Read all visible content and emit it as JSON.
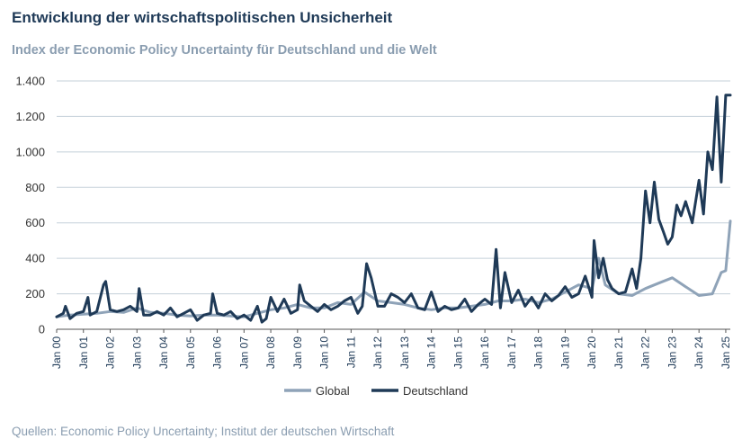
{
  "header": {
    "title": "Entwicklung der wirtschaftspolitischen Unsicherheit",
    "subtitle": "Index der Economic Policy Uncertainty für Deutschland und die Welt"
  },
  "footer": {
    "source": "Quellen: Economic Policy Uncertainty; Institut der deutschen Wirtschaft"
  },
  "chart_data": {
    "type": "line",
    "title": "Entwicklung der wirtschaftspolitischen Unsicherheit",
    "subtitle": "Index der Economic Policy Uncertainty für Deutschland und die Welt",
    "x_tick_labels": [
      "Jan 00",
      "Jan 01",
      "Jan 02",
      "Jan 03",
      "Jan 04",
      "Jan 05",
      "Jan 06",
      "Jan 07",
      "Jan 08",
      "Jan 09",
      "Jan 10",
      "Jan 11",
      "Jan 12",
      "Jan 13",
      "Jan 14",
      "Jan 15",
      "Jan 16",
      "Jan 17",
      "Jan 18",
      "Jan 19",
      "Jan 20",
      "Jan 21",
      "Jan 22",
      "Jan 23",
      "Jan 24",
      "Jan 25"
    ],
    "y_tick_labels": [
      "0",
      "200",
      "400",
      "600",
      "800",
      "1.000",
      "1.200",
      "1.400"
    ],
    "ylim": [
      0,
      1400
    ],
    "y_ticks": [
      0,
      200,
      400,
      600,
      800,
      1000,
      1200,
      1400
    ],
    "grid": true,
    "legend_position": "bottom",
    "series": [
      {
        "name": "Global",
        "color": "#8fa3b8",
        "x": [
          2000.0,
          2000.5,
          2001.0,
          2001.5,
          2002.0,
          2002.5,
          2003.0,
          2003.5,
          2004.0,
          2004.5,
          2005.0,
          2005.5,
          2006.0,
          2006.5,
          2007.0,
          2007.5,
          2008.0,
          2008.5,
          2009.0,
          2009.5,
          2010.0,
          2010.5,
          2011.0,
          2011.5,
          2012.0,
          2012.5,
          2013.0,
          2013.5,
          2014.0,
          2014.5,
          2015.0,
          2015.5,
          2016.0,
          2016.5,
          2017.0,
          2017.5,
          2018.0,
          2018.5,
          2019.0,
          2019.5,
          2020.0,
          2020.25,
          2020.5,
          2021.0,
          2021.5,
          2022.0,
          2022.5,
          2023.0,
          2023.5,
          2024.0,
          2024.5,
          2024.83,
          2025.0,
          2025.17
        ],
        "y": [
          70,
          80,
          85,
          90,
          100,
          95,
          120,
          95,
          90,
          80,
          75,
          80,
          80,
          75,
          70,
          90,
          110,
          120,
          140,
          120,
          120,
          150,
          140,
          210,
          160,
          150,
          140,
          120,
          110,
          120,
          120,
          130,
          140,
          160,
          160,
          170,
          150,
          170,
          210,
          250,
          230,
          400,
          250,
          200,
          190,
          230,
          260,
          290,
          240,
          190,
          200,
          320,
          330,
          610
        ]
      },
      {
        "name": "Deutschland",
        "color": "#1f3a57",
        "x": [
          2000.0,
          2000.25,
          2000.33,
          2000.5,
          2000.75,
          2001.0,
          2001.17,
          2001.25,
          2001.5,
          2001.75,
          2001.83,
          2002.0,
          2002.25,
          2002.5,
          2002.75,
          2003.0,
          2003.08,
          2003.25,
          2003.5,
          2003.75,
          2004.0,
          2004.25,
          2004.5,
          2004.75,
          2005.0,
          2005.25,
          2005.5,
          2005.75,
          2005.83,
          2006.0,
          2006.25,
          2006.5,
          2006.75,
          2007.0,
          2007.25,
          2007.5,
          2007.67,
          2007.83,
          2008.0,
          2008.25,
          2008.5,
          2008.75,
          2009.0,
          2009.08,
          2009.25,
          2009.5,
          2009.75,
          2010.0,
          2010.25,
          2010.5,
          2010.75,
          2011.0,
          2011.25,
          2011.42,
          2011.58,
          2011.75,
          2012.0,
          2012.25,
          2012.5,
          2012.75,
          2013.0,
          2013.25,
          2013.5,
          2013.75,
          2014.0,
          2014.25,
          2014.5,
          2014.75,
          2015.0,
          2015.25,
          2015.5,
          2015.75,
          2016.0,
          2016.25,
          2016.42,
          2016.58,
          2016.75,
          2017.0,
          2017.25,
          2017.5,
          2017.75,
          2018.0,
          2018.25,
          2018.5,
          2018.75,
          2019.0,
          2019.25,
          2019.5,
          2019.75,
          2020.0,
          2020.08,
          2020.25,
          2020.42,
          2020.58,
          2020.75,
          2021.0,
          2021.25,
          2021.5,
          2021.67,
          2021.83,
          2022.0,
          2022.17,
          2022.33,
          2022.5,
          2022.67,
          2022.83,
          2023.0,
          2023.17,
          2023.33,
          2023.5,
          2023.75,
          2024.0,
          2024.17,
          2024.33,
          2024.5,
          2024.67,
          2024.83,
          2025.0,
          2025.08,
          2025.17
        ],
        "y": [
          70,
          90,
          130,
          60,
          90,
          100,
          180,
          80,
          100,
          250,
          270,
          110,
          100,
          110,
          130,
          100,
          230,
          80,
          80,
          100,
          80,
          120,
          70,
          90,
          110,
          50,
          80,
          90,
          200,
          90,
          80,
          100,
          60,
          80,
          50,
          130,
          40,
          60,
          180,
          100,
          170,
          90,
          110,
          250,
          160,
          130,
          100,
          140,
          110,
          130,
          160,
          180,
          90,
          130,
          370,
          290,
          130,
          130,
          200,
          180,
          150,
          200,
          120,
          110,
          210,
          100,
          130,
          110,
          120,
          170,
          100,
          140,
          170,
          140,
          450,
          120,
          320,
          150,
          220,
          130,
          180,
          120,
          200,
          160,
          190,
          240,
          180,
          200,
          300,
          180,
          500,
          290,
          400,
          280,
          230,
          200,
          210,
          340,
          230,
          400,
          780,
          600,
          830,
          620,
          550,
          480,
          520,
          700,
          640,
          720,
          600,
          840,
          650,
          1000,
          900,
          1310,
          830,
          1320,
          1320,
          1320
        ]
      }
    ]
  }
}
